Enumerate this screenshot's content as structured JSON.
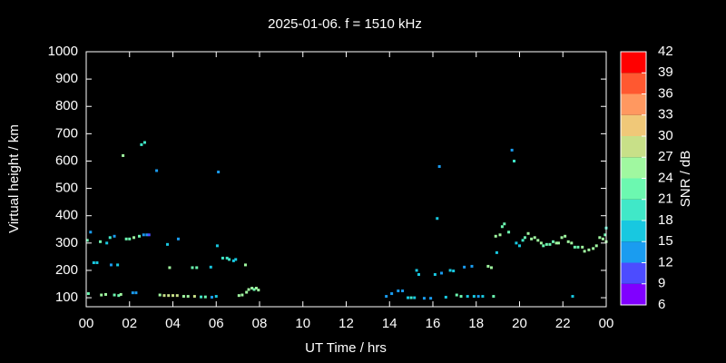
{
  "chart_data": {
    "type": "scatter",
    "title": "2025-01-06. f = 1510 kHz",
    "x_label": "UT Time / hrs",
    "y_label": "Virtual height / km",
    "colorbar_label": "SNR / dB",
    "xlim": [
      0,
      24
    ],
    "ylim": [
      67,
      1000
    ],
    "xticks": [
      {
        "value": 0,
        "label": "00"
      },
      {
        "value": 2,
        "label": "02"
      },
      {
        "value": 4,
        "label": "04"
      },
      {
        "value": 6,
        "label": "06"
      },
      {
        "value": 8,
        "label": "08"
      },
      10,
      12,
      14,
      16,
      18,
      20,
      22,
      {
        "value": 24,
        "label": "00"
      }
    ],
    "yticks": [
      100,
      200,
      300,
      400,
      500,
      600,
      700,
      800,
      900,
      1000
    ],
    "colorbar_ticks": [
      6,
      9,
      12,
      15,
      18,
      21,
      24,
      27,
      30,
      33,
      36,
      39,
      42
    ],
    "colorbar_colors": [
      "#8000ff",
      "#4c4cff",
      "#1a9cf0",
      "#18c8e0",
      "#40e8c8",
      "#6cf8b0",
      "#a0f8a0",
      "#c8e088",
      "#f0c878",
      "#ff9860",
      "#ff5830",
      "#ff0000"
    ],
    "x": [
      0.05,
      0.1,
      0.2,
      0.35,
      0.5,
      0.65,
      0.7,
      0.9,
      0.95,
      1.1,
      1.15,
      1.3,
      1.3,
      1.45,
      1.5,
      1.6,
      1.7,
      1.85,
      2.0,
      2.15,
      2.2,
      2.3,
      2.45,
      2.55,
      2.7,
      2.8,
      2.65,
      2.9,
      3.25,
      3.4,
      3.6,
      3.75,
      3.8,
      3.85,
      4.0,
      4.2,
      4.25,
      4.5,
      4.7,
      4.9,
      5.1,
      5.0,
      5.3,
      5.5,
      5.75,
      5.8,
      6.0,
      6.05,
      6.1,
      6.3,
      6.5,
      6.6,
      6.8,
      6.9,
      7.05,
      7.2,
      7.35,
      7.4,
      7.5,
      7.65,
      7.75,
      7.85,
      7.95,
      13.85,
      14.1,
      14.4,
      14.6,
      14.85,
      15.0,
      15.15,
      15.25,
      15.35,
      15.6,
      15.9,
      16.1,
      16.2,
      16.3,
      16.4,
      16.6,
      16.8,
      16.95,
      17.1,
      17.3,
      17.45,
      17.6,
      17.8,
      17.9,
      18.1,
      18.3,
      18.55,
      18.7,
      18.8,
      18.9,
      18.95,
      19.1,
      19.2,
      19.3,
      19.5,
      19.65,
      19.75,
      19.85,
      20.0,
      20.15,
      20.25,
      20.4,
      20.55,
      20.7,
      20.85,
      21.0,
      21.1,
      21.25,
      21.4,
      21.55,
      21.7,
      21.8,
      21.95,
      22.1,
      22.25,
      22.4,
      22.55,
      22.7,
      22.9,
      23.0,
      23.2,
      23.4,
      23.55,
      23.7,
      23.85,
      24.0,
      23.95,
      22.45,
      24.0
    ],
    "values": [
      310,
      115,
      340,
      228,
      228,
      305,
      110,
      112,
      300,
      320,
      220,
      325,
      110,
      220,
      108,
      112,
      620,
      315,
      315,
      118,
      320,
      118,
      325,
      660,
      668,
      330,
      330,
      330,
      565,
      110,
      108,
      295,
      108,
      210,
      108,
      108,
      315,
      105,
      105,
      210,
      210,
      105,
      103,
      103,
      212,
      102,
      105,
      290,
      560,
      245,
      245,
      240,
      235,
      240,
      108,
      110,
      220,
      120,
      130,
      135,
      130,
      135,
      128,
      105,
      115,
      125,
      125,
      100,
      100,
      100,
      200,
      185,
      98,
      98,
      185,
      390,
      580,
      190,
      102,
      200,
      198,
      110,
      105,
      212,
      105,
      215,
      105,
      105,
      105,
      215,
      210,
      105,
      325,
      265,
      330,
      360,
      370,
      340,
      640,
      600,
      300,
      290,
      310,
      320,
      335,
      315,
      320,
      310,
      300,
      290,
      295,
      295,
      305,
      300,
      300,
      320,
      325,
      305,
      300,
      285,
      285,
      285,
      270,
      275,
      280,
      290,
      320,
      315,
      305,
      330,
      105,
      355
    ],
    "snr": [
      21,
      21,
      12,
      15,
      15,
      21,
      24,
      24,
      15,
      18,
      12,
      12,
      21,
      15,
      21,
      24,
      24,
      21,
      21,
      12,
      24,
      12,
      21,
      18,
      18,
      12,
      12,
      9,
      12,
      24,
      27,
      15,
      27,
      24,
      27,
      27,
      12,
      24,
      24,
      21,
      21,
      27,
      18,
      21,
      15,
      12,
      15,
      15,
      12,
      18,
      18,
      18,
      15,
      15,
      24,
      24,
      24,
      24,
      24,
      24,
      21,
      24,
      24,
      12,
      12,
      12,
      12,
      15,
      18,
      15,
      15,
      15,
      12,
      12,
      15,
      15,
      12,
      12,
      15,
      15,
      15,
      21,
      21,
      12,
      15,
      12,
      15,
      12,
      15,
      24,
      24,
      21,
      24,
      15,
      24,
      21,
      21,
      21,
      12,
      18,
      15,
      15,
      18,
      21,
      24,
      24,
      24,
      24,
      24,
      21,
      21,
      21,
      21,
      24,
      24,
      24,
      24,
      24,
      24,
      21,
      21,
      24,
      24,
      24,
      24,
      24,
      24,
      24,
      24,
      21,
      15,
      18
    ]
  }
}
